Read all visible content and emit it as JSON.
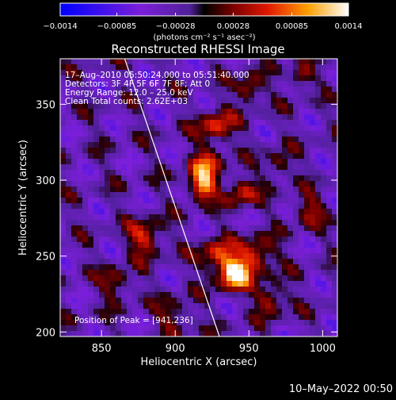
{
  "chart_data": {
    "type": "heatmap",
    "title": "Reconstructed RHESSI Image",
    "xlabel": "Heliocentric X (arcsec)",
    "ylabel": "Heliocentric Y (arcsec)",
    "xlim": [
      822,
      1010
    ],
    "ylim": [
      197,
      380
    ],
    "x_ticks": [
      850,
      900,
      950,
      1000
    ],
    "y_ticks": [
      200,
      250,
      300,
      350
    ],
    "colorbar": {
      "min": -0.0014,
      "max": 0.0014,
      "tick_values": [
        -0.0014,
        -0.00085,
        -0.00028,
        0.00028,
        0.00085,
        0.0014
      ],
      "tick_labels": [
        "−0.0014",
        "−0.00085",
        "−0.00028",
        "0.00028",
        "0.00085",
        "0.0014"
      ],
      "unit_label": "(photons cm⁻² s⁻¹ asec⁻²)"
    },
    "annotations": [
      "17–Aug–2010 05:50:24.000 to 05:51:40.000",
      "Detectors: 3F 4F 5F 6F 7F 8F; Att 0",
      "Energy Range: 12.0 – 25.0 keV",
      "Clean     Total counts: 2.62E+03"
    ],
    "peak_label": "Position of Peak = [941,236]",
    "peak": {
      "x": 941,
      "y": 236
    },
    "limb_line": [
      [
        864,
        385
      ],
      [
        930,
        197
      ]
    ],
    "emission_sources": [
      {
        "x": 940,
        "y": 238,
        "strength": 1.0,
        "sigma": 7
      },
      {
        "x": 928,
        "y": 250,
        "strength": 0.55,
        "sigma": 8
      },
      {
        "x": 955,
        "y": 250,
        "strength": 0.6,
        "sigma": 8
      },
      {
        "x": 918,
        "y": 295,
        "strength": 0.7,
        "sigma": 6
      },
      {
        "x": 920,
        "y": 308,
        "strength": 0.55,
        "sigma": 8
      },
      {
        "x": 945,
        "y": 292,
        "strength": 0.5,
        "sigma": 7
      },
      {
        "x": 928,
        "y": 335,
        "strength": 0.55,
        "sigma": 8
      },
      {
        "x": 950,
        "y": 360,
        "strength": 0.55,
        "sigma": 6
      },
      {
        "x": 985,
        "y": 368,
        "strength": 0.5,
        "sigma": 5
      },
      {
        "x": 880,
        "y": 262,
        "strength": 0.55,
        "sigma": 8
      },
      {
        "x": 860,
        "y": 232,
        "strength": 0.4,
        "sigma": 7
      },
      {
        "x": 965,
        "y": 222,
        "strength": 0.5,
        "sigma": 7
      },
      {
        "x": 990,
        "y": 280,
        "strength": 0.4,
        "sigma": 7
      },
      {
        "x": 900,
        "y": 210,
        "strength": 0.35,
        "sigma": 8
      },
      {
        "x": 970,
        "y": 310,
        "strength": 0.4,
        "sigma": 6
      }
    ]
  },
  "footer": {
    "timestamp": "10–May–2022 00:50"
  }
}
